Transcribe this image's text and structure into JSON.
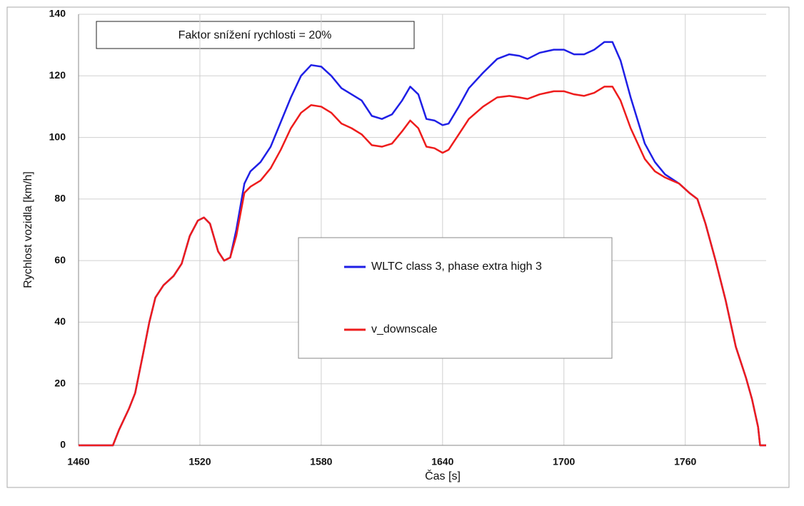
{
  "chart_data": {
    "type": "line",
    "annotation": "Faktor snížení rychlosti = 20%",
    "xlabel": "Čas [s]",
    "ylabel": "Rychlost vozidla [km/h]",
    "x": [
      1460,
      1477,
      1480,
      1485,
      1488,
      1492,
      1495,
      1498,
      1502,
      1507,
      1511,
      1515,
      1519,
      1522,
      1525,
      1529,
      1532,
      1535,
      1538,
      1542,
      1545,
      1550,
      1555,
      1560,
      1565,
      1570,
      1575,
      1580,
      1585,
      1590,
      1595,
      1600,
      1605,
      1610,
      1615,
      1620,
      1624,
      1628,
      1632,
      1636,
      1640,
      1643,
      1648,
      1653,
      1660,
      1667,
      1673,
      1678,
      1682,
      1688,
      1695,
      1700,
      1705,
      1710,
      1715,
      1720,
      1724,
      1728,
      1733,
      1740,
      1745,
      1750,
      1757,
      1762,
      1766,
      1770,
      1775,
      1780,
      1785,
      1790,
      1793,
      1796,
      1797,
      1800
    ],
    "series": [
      {
        "name": "WLTC class 3, phase extra high 3",
        "color": "#1f1fe6",
        "values": [
          0,
          0,
          5,
          12,
          17,
          30,
          40,
          48,
          52,
          55,
          59,
          68,
          73,
          74,
          72,
          63,
          60,
          61,
          70,
          85,
          89,
          92,
          97,
          105,
          113,
          120,
          123.5,
          123,
          120,
          116,
          114,
          112,
          107,
          106,
          107.5,
          112,
          116.5,
          114,
          106,
          105.5,
          104,
          104.5,
          110,
          116,
          121,
          125.5,
          127,
          126.5,
          125.5,
          127.5,
          128.5,
          128.5,
          127,
          127,
          128.5,
          131,
          131,
          125,
          113,
          98,
          92,
          88,
          85,
          82,
          80,
          72,
          60,
          47,
          32,
          22,
          15,
          6,
          0,
          0
        ]
      },
      {
        "name": "v_downscale",
        "color": "#ee1c1c",
        "values": [
          0,
          0,
          5,
          12,
          17,
          30,
          40,
          48,
          52,
          55,
          59,
          68,
          73,
          74,
          72,
          63,
          60,
          61,
          68,
          82,
          84,
          86,
          90,
          96,
          103,
          108,
          110.5,
          110,
          108,
          104.5,
          103,
          101,
          97.5,
          97,
          98,
          102,
          105.5,
          103,
          97,
          96.5,
          95,
          96,
          101,
          106,
          110,
          113,
          113.5,
          113,
          112.5,
          114,
          115,
          115,
          114,
          113.5,
          114.5,
          116.5,
          116.5,
          112,
          103,
          93,
          89,
          87,
          85,
          82,
          80,
          72,
          60,
          47,
          32,
          22,
          15,
          6,
          0,
          0
        ]
      }
    ],
    "xlim": [
      1460,
      1800
    ],
    "xticks": [
      1460,
      1520,
      1580,
      1640,
      1700,
      1760
    ],
    "ylim": [
      0,
      140
    ],
    "yticks": [
      0,
      20,
      40,
      60,
      80,
      100,
      120,
      140
    ],
    "grid": true,
    "legend": "center"
  }
}
